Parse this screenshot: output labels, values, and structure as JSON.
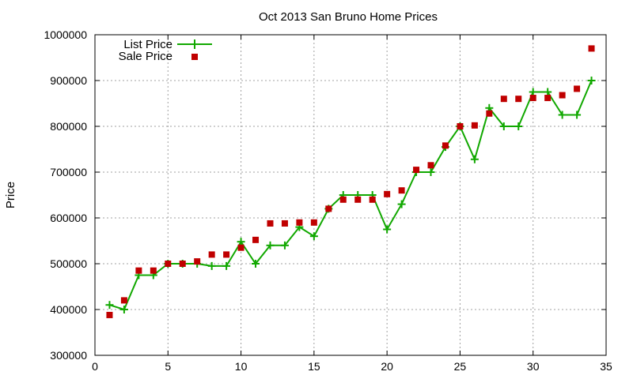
{
  "chart_data": {
    "type": "line",
    "title": "Oct 2013 San Bruno Home Prices",
    "xlabel": "",
    "ylabel": "Price",
    "xlim": [
      0,
      35
    ],
    "ylim": [
      300000,
      1000000
    ],
    "x_ticks": [
      0,
      5,
      10,
      15,
      20,
      25,
      30,
      35
    ],
    "y_ticks": [
      300000,
      400000,
      500000,
      600000,
      700000,
      800000,
      900000,
      1000000
    ],
    "grid": true,
    "legend_position": "top-left",
    "series": [
      {
        "name": "List Price",
        "style": "line+cross",
        "color": "#11a800",
        "x": [
          1,
          2,
          3,
          4,
          5,
          6,
          7,
          8,
          9,
          10,
          11,
          12,
          13,
          14,
          15,
          16,
          17,
          18,
          19,
          20,
          21,
          22,
          23,
          24,
          25,
          26,
          27,
          28,
          29,
          30,
          31,
          32,
          33,
          34
        ],
        "values": [
          410000,
          400000,
          475000,
          475000,
          500000,
          500000,
          500000,
          495000,
          495000,
          548000,
          500000,
          540000,
          540000,
          580000,
          560000,
          620000,
          650000,
          650000,
          650000,
          575000,
          630000,
          700000,
          700000,
          755000,
          800000,
          728000,
          840000,
          800000,
          800000,
          875000,
          875000,
          825000,
          825000,
          900000
        ]
      },
      {
        "name": "Sale Price",
        "style": "square",
        "color": "#c00000",
        "x": [
          1,
          2,
          3,
          4,
          5,
          6,
          7,
          8,
          9,
          10,
          11,
          12,
          13,
          14,
          15,
          16,
          17,
          18,
          19,
          20,
          21,
          22,
          23,
          24,
          25,
          26,
          27,
          28,
          29,
          30,
          31,
          32,
          33,
          34
        ],
        "values": [
          388000,
          420000,
          485000,
          485000,
          500000,
          500000,
          505000,
          520000,
          520000,
          535000,
          552000,
          588000,
          588000,
          590000,
          590000,
          620000,
          640000,
          640000,
          640000,
          652000,
          660000,
          705000,
          715000,
          758000,
          800000,
          802000,
          828000,
          860000,
          860000,
          862000,
          862000,
          868000,
          882000,
          970000
        ]
      }
    ]
  }
}
